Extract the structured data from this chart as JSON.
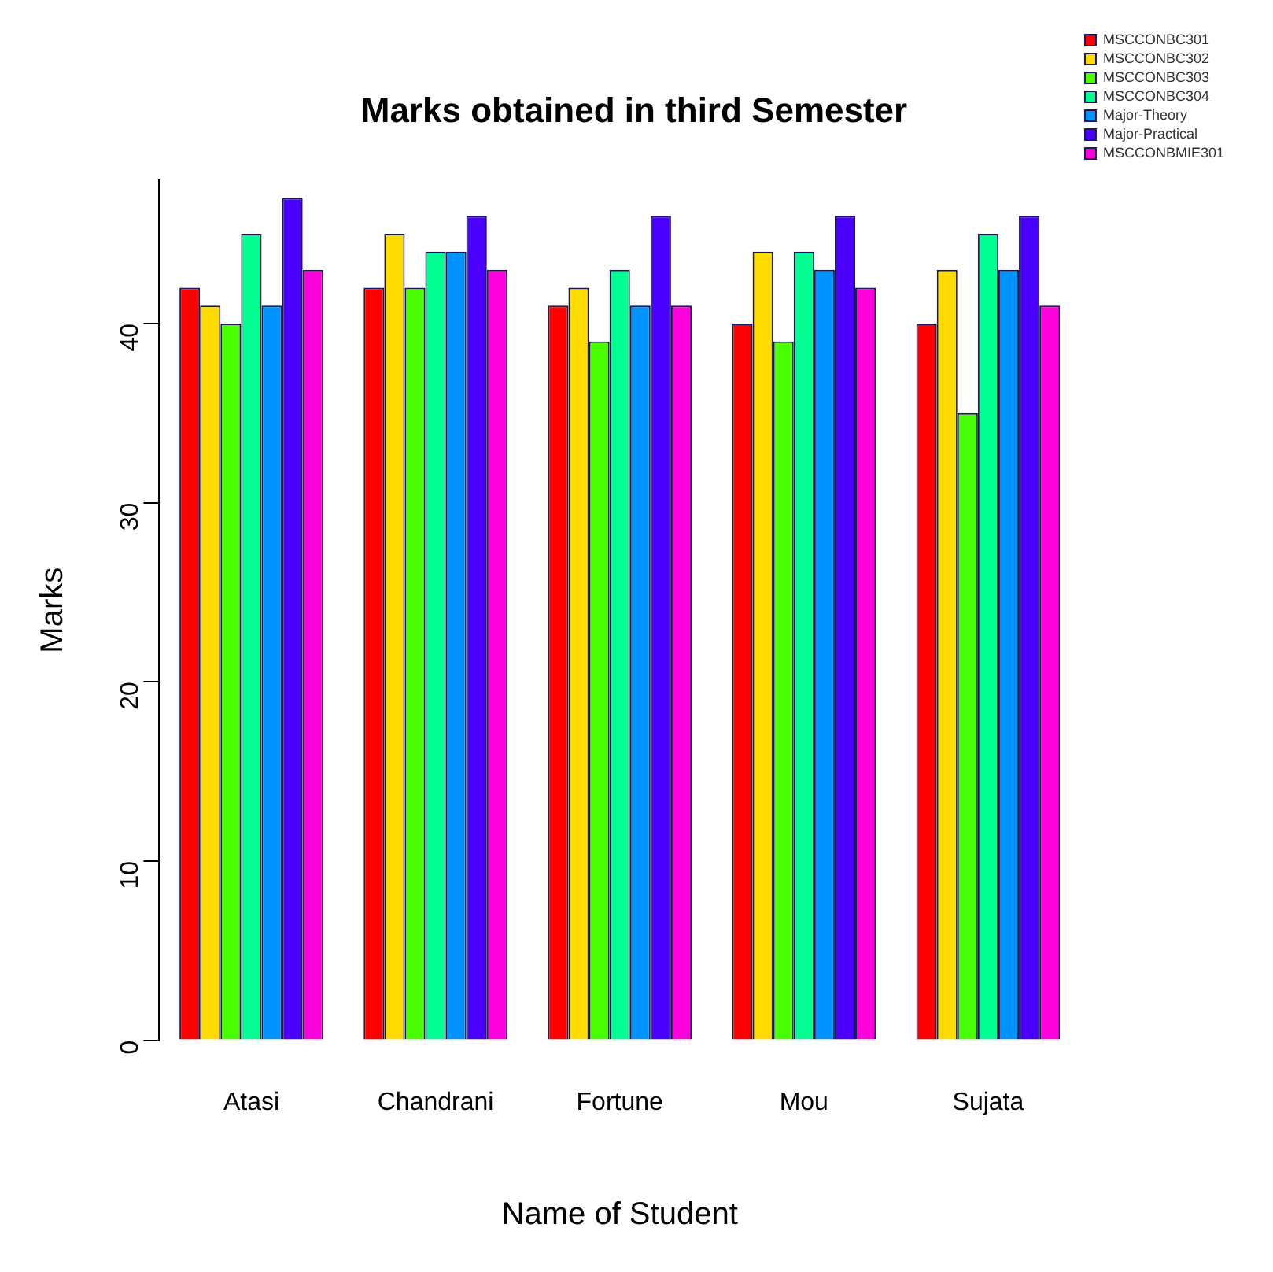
{
  "chart_data": {
    "type": "bar",
    "title": "Marks obtained in third Semester",
    "xlabel": "Name of Student",
    "ylabel": "Marks",
    "categories": [
      "Atasi",
      "Chandrani",
      "Fortune",
      "Mou",
      "Sujata"
    ],
    "series": [
      {
        "name": "MSCCONBC301",
        "color": "#ff0000",
        "values": [
          42,
          42,
          41,
          40,
          40
        ]
      },
      {
        "name": "MSCCONBC302",
        "color": "#ffdb00",
        "values": [
          41,
          45,
          42,
          44,
          43
        ]
      },
      {
        "name": "MSCCONBC303",
        "color": "#49ff00",
        "values": [
          40,
          42,
          39,
          39,
          35
        ]
      },
      {
        "name": "MSCCONBC304",
        "color": "#00ff92",
        "values": [
          45,
          44,
          43,
          44,
          45
        ]
      },
      {
        "name": "Major-Theory",
        "color": "#0092ff",
        "values": [
          41,
          44,
          41,
          43,
          43
        ]
      },
      {
        "name": "Major-Practical",
        "color": "#4900ff",
        "values": [
          47,
          46,
          46,
          46,
          46
        ]
      },
      {
        "name": "MSCCONBMIE301",
        "color": "#ff00db",
        "values": [
          43,
          43,
          41,
          42,
          41
        ]
      }
    ],
    "ylim": [
      0,
      48
    ],
    "yticks": [
      0,
      10,
      20,
      30,
      40
    ],
    "grid": false,
    "legend": "top right"
  }
}
